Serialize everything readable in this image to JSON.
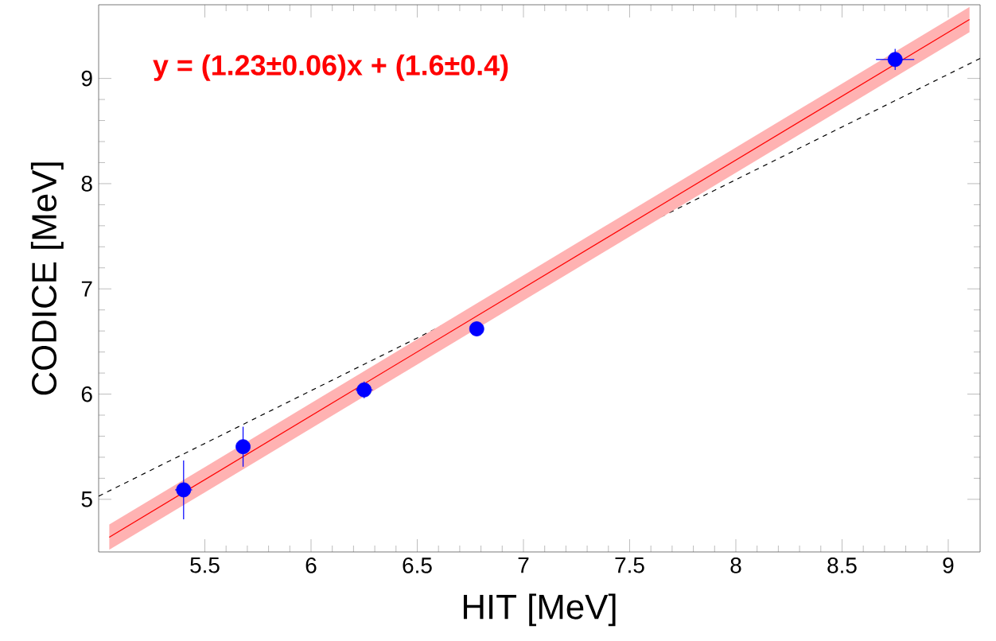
{
  "chart_data": {
    "type": "scatter",
    "xlabel": "HIT [MeV]",
    "ylabel": "CODICE [MeV]",
    "annotations": [
      "y = (1.23±0.06)x + (1.6±0.4)"
    ],
    "xlim": [
      5.0,
      9.15
    ],
    "ylim": [
      4.5,
      9.7
    ],
    "xticks": [
      5.5,
      6,
      6.5,
      7,
      7.5,
      8,
      8.5,
      9
    ],
    "yticks": [
      5,
      6,
      7,
      8,
      9
    ],
    "series": [
      {
        "type": "line",
        "color": "#000000",
        "line_style": "dashed",
        "marker": "none",
        "x": [
          5.0,
          9.15
        ],
        "values": [
          5.03,
          9.19
        ]
      },
      {
        "type": "line",
        "color": "#ff0000",
        "line_style": "solid",
        "marker": "none",
        "x": [
          5.05,
          9.1
        ],
        "values": [
          4.64,
          9.56
        ],
        "lower": [
          4.52,
          9.44
        ],
        "upper": [
          4.76,
          9.68
        ]
      },
      {
        "color": "#0000ff",
        "marker": "circle",
        "x": [
          5.4,
          5.68,
          6.25,
          6.78,
          8.75
        ],
        "values": [
          5.09,
          5.5,
          6.04,
          6.62,
          9.18
        ],
        "errors": [
          0.28,
          0.19,
          0.08,
          0.07,
          0.1
        ],
        "xerrors": [
          0.04,
          0.03,
          0.04,
          0.03,
          0.09
        ]
      }
    ]
  }
}
